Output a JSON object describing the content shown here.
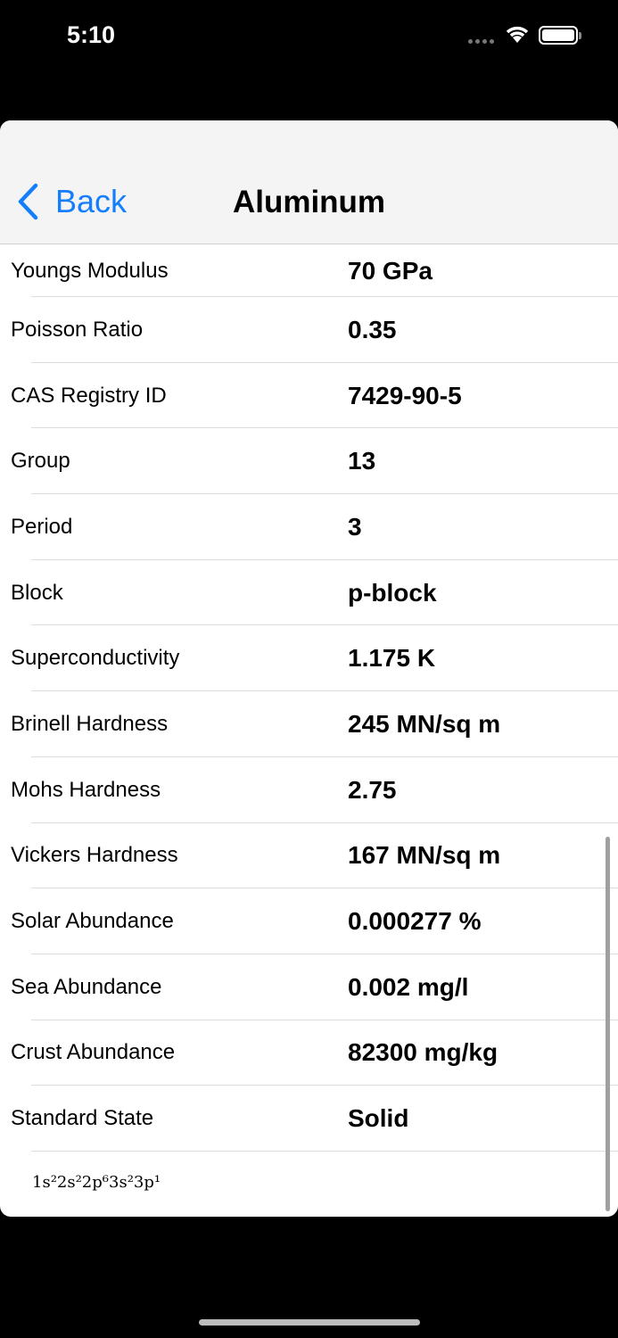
{
  "status_bar": {
    "time": "5:10",
    "icons": [
      "signal-dots-icon",
      "wifi-icon",
      "battery-icon"
    ]
  },
  "nav": {
    "back_label": "Back",
    "title": "Aluminum",
    "accent": "#147efb"
  },
  "rows": [
    {
      "label": "Youngs Modulus",
      "value": "70 GPa"
    },
    {
      "label": "Poisson Ratio",
      "value": "0.35"
    },
    {
      "label": "CAS Registry ID",
      "value": "7429-90-5"
    },
    {
      "label": "Group",
      "value": "13"
    },
    {
      "label": "Period",
      "value": "3"
    },
    {
      "label": "Block",
      "value": "p-block"
    },
    {
      "label": "Superconductivity",
      "value": "1.175 K"
    },
    {
      "label": "Brinell Hardness",
      "value": "245 MN/sq m"
    },
    {
      "label": "Mohs Hardness",
      "value": "2.75"
    },
    {
      "label": "Vickers Hardness",
      "value": "167 MN/sq m"
    },
    {
      "label": "Solar Abundance",
      "value": "0.000277 %"
    },
    {
      "label": "Sea Abundance",
      "value": "0.002 mg/l"
    },
    {
      "label": "Crust Abundance",
      "value": "82300 mg/kg"
    },
    {
      "label": "Standard State",
      "value": "Solid"
    }
  ],
  "electron_configuration": "1s²2s²2p⁶3s²3p¹"
}
